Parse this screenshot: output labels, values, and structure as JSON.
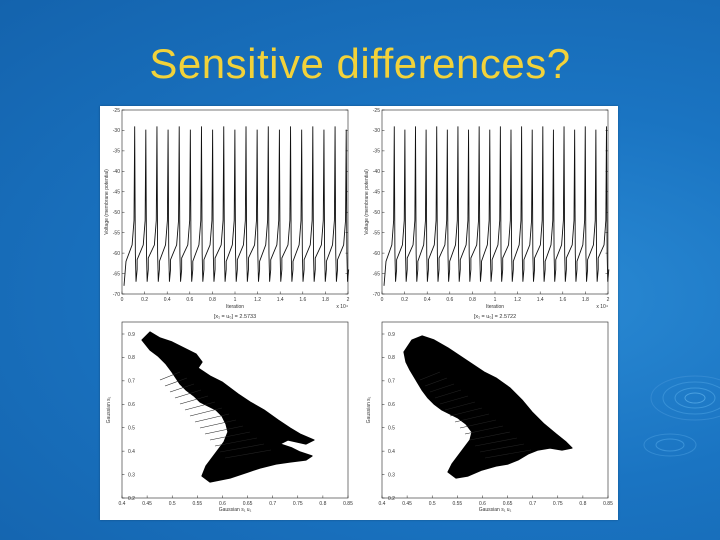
{
  "slide": {
    "title": "Sensitive differences?",
    "title_color": "#f2d23a",
    "background_color": "#1a74c2"
  },
  "figures": {
    "voltage_left": {
      "ylabel": "Voltage (membrane potential)",
      "xlabel": "Iteration",
      "x_multiplier": "x 10⁴",
      "yticks": [
        "-25",
        "-30",
        "-35",
        "-40",
        "-45",
        "-50",
        "-55",
        "-60",
        "-65",
        "-70"
      ],
      "xticks": [
        "0",
        "0.2",
        "0.4",
        "0.6",
        "0.8",
        "1",
        "1.2",
        "1.4",
        "1.6",
        "1.8",
        "2"
      ],
      "spike_count": 20
    },
    "voltage_right": {
      "ylabel": "Voltage (membrane potential)",
      "xlabel": "Iteration",
      "x_multiplier": "x 10⁴",
      "yticks": [
        "-25",
        "-30",
        "-35",
        "-40",
        "-45",
        "-50",
        "-55",
        "-60",
        "-65",
        "-70"
      ],
      "xticks": [
        "0",
        "0.2",
        "0.4",
        "0.6",
        "0.8",
        "1",
        "1.2",
        "1.4",
        "1.6",
        "1.8",
        "2"
      ],
      "spike_count": 21
    },
    "attractor_left": {
      "subtitle": "[x₁ = u₀] = 2.5733",
      "ylabel": "Gaussian s₁",
      "xlabel": "Gaussian s₁ u₁",
      "yticks": [
        "0.9",
        "0.8",
        "0.7",
        "0.6",
        "0.5",
        "0.4",
        "0.3",
        "0.2"
      ],
      "xticks": [
        "0.4",
        "0.45",
        "0.5",
        "0.55",
        "0.6",
        "0.65",
        "0.7",
        "0.75",
        "0.8",
        "0.85"
      ]
    },
    "attractor_right": {
      "subtitle": "[x₁ = u₀] = 2.5722",
      "ylabel": "Gaussian s₁",
      "xlabel": "Gaussian s₁ u₁",
      "yticks": [
        "0.9",
        "0.8",
        "0.7",
        "0.6",
        "0.5",
        "0.4",
        "0.3",
        "0.2"
      ],
      "xticks": [
        "0.4",
        "0.45",
        "0.5",
        "0.55",
        "0.6",
        "0.65",
        "0.7",
        "0.75",
        "0.8",
        "0.85"
      ]
    }
  }
}
